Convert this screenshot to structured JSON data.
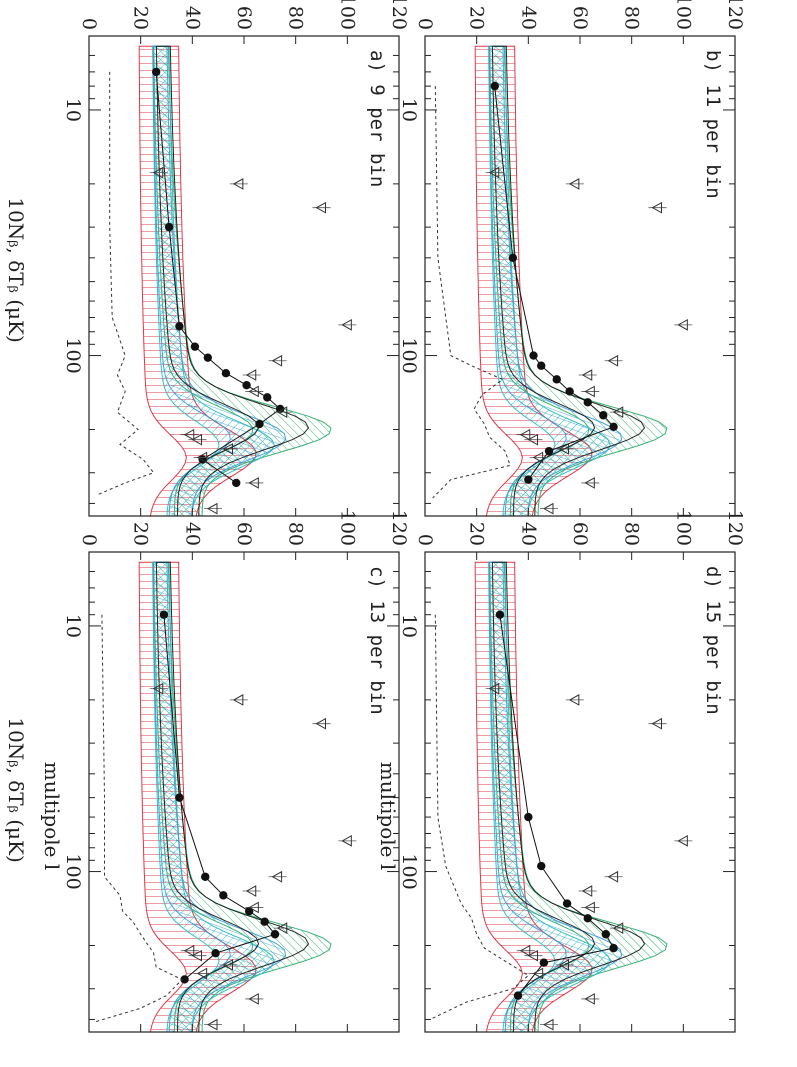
{
  "figure": {
    "xlabel": "multipole l",
    "ylabel": "10Nᵦ, δTᵦ (μK)",
    "x_ticks": [
      {
        "v": 10,
        "label": "10"
      },
      {
        "v": 100,
        "label": "100"
      }
    ],
    "y_ticks": [
      0,
      20,
      40,
      60,
      80,
      100,
      120
    ],
    "colors": {
      "black_band": "#111111",
      "blue_band": "#3399dd",
      "green_band": "#22aa66",
      "red_band": "#dd2233",
      "teal_band": "#22bbbb",
      "points": "#111111",
      "noise": "#333333"
    }
  },
  "chart_data": [
    {
      "type": "line",
      "panel_label": "a) 9 per bin",
      "xscale": "log",
      "xlim": [
        5,
        450
      ],
      "ylim": [
        0,
        120
      ],
      "points": {
        "x": [
          7,
          30,
          76,
          92,
          102,
          118,
          132,
          148,
          165,
          190,
          265,
          330
        ],
        "y": [
          26,
          31,
          35,
          41,
          46,
          53,
          61,
          69,
          74,
          66,
          44,
          57
        ]
      },
      "noise": {
        "x": [
          7,
          30,
          70,
          100,
          120,
          140,
          170,
          200,
          230,
          265,
          300,
          330,
          370
        ],
        "y": [
          8,
          8,
          9,
          14,
          11,
          14,
          11,
          19,
          12,
          21,
          25,
          14,
          3
        ]
      },
      "experiments": [
        {
          "x": 18,
          "y": 27
        },
        {
          "x": 20,
          "y": 58
        },
        {
          "x": 25,
          "y": 90
        },
        {
          "x": 75,
          "y": 100
        },
        {
          "x": 105,
          "y": 73
        },
        {
          "x": 120,
          "y": 63
        },
        {
          "x": 140,
          "y": 64
        },
        {
          "x": 170,
          "y": 75
        },
        {
          "x": 210,
          "y": 39
        },
        {
          "x": 220,
          "y": 42
        },
        {
          "x": 240,
          "y": 54
        },
        {
          "x": 260,
          "y": 44
        },
        {
          "x": 330,
          "y": 64
        },
        {
          "x": 420,
          "y": 48
        }
      ]
    },
    {
      "type": "line",
      "panel_label": "b) 11 per bin",
      "xscale": "log",
      "xlim": [
        5,
        450
      ],
      "ylim": [
        0,
        120
      ],
      "points": {
        "x": [
          8,
          40,
          100,
          110,
          125,
          140,
          155,
          175,
          195,
          245,
          320
        ],
        "y": [
          27,
          34,
          42,
          45,
          51,
          56,
          63,
          69,
          73,
          48,
          40
        ]
      },
      "noise": {
        "x": [
          8,
          40,
          100,
          110,
          125,
          145,
          165,
          190,
          215,
          245,
          280,
          320,
          380
        ],
        "y": [
          4,
          5,
          10,
          18,
          30,
          22,
          19,
          23,
          25,
          31,
          33,
          10,
          3
        ]
      },
      "experiments": [
        {
          "x": 18,
          "y": 27
        },
        {
          "x": 20,
          "y": 58
        },
        {
          "x": 25,
          "y": 90
        },
        {
          "x": 75,
          "y": 100
        },
        {
          "x": 105,
          "y": 73
        },
        {
          "x": 120,
          "y": 63
        },
        {
          "x": 140,
          "y": 64
        },
        {
          "x": 170,
          "y": 75
        },
        {
          "x": 210,
          "y": 39
        },
        {
          "x": 220,
          "y": 42
        },
        {
          "x": 240,
          "y": 54
        },
        {
          "x": 260,
          "y": 44
        },
        {
          "x": 330,
          "y": 64
        },
        {
          "x": 420,
          "y": 48
        }
      ]
    },
    {
      "type": "line",
      "panel_label": "c) 13 per bin",
      "xscale": "log",
      "xlim": [
        5,
        450
      ],
      "ylim": [
        0,
        120
      ],
      "points": {
        "x": [
          9,
          50,
          105,
          125,
          145,
          160,
          180,
          215,
          275
        ],
        "y": [
          29,
          35,
          45,
          52,
          62,
          68,
          72,
          49,
          37
        ]
      },
      "noise": {
        "x": [
          9,
          50,
          105,
          125,
          145,
          160,
          180,
          215,
          245,
          275,
          320,
          360,
          410
        ],
        "y": [
          5,
          6,
          6,
          12,
          13,
          17,
          20,
          25,
          26,
          36,
          30,
          20,
          2
        ]
      },
      "experiments": [
        {
          "x": 18,
          "y": 27
        },
        {
          "x": 20,
          "y": 58
        },
        {
          "x": 25,
          "y": 90
        },
        {
          "x": 75,
          "y": 100
        },
        {
          "x": 105,
          "y": 73
        },
        {
          "x": 120,
          "y": 63
        },
        {
          "x": 140,
          "y": 64
        },
        {
          "x": 170,
          "y": 75
        },
        {
          "x": 210,
          "y": 39
        },
        {
          "x": 220,
          "y": 42
        },
        {
          "x": 240,
          "y": 54
        },
        {
          "x": 260,
          "y": 44
        },
        {
          "x": 330,
          "y": 64
        },
        {
          "x": 420,
          "y": 48
        }
      ]
    },
    {
      "type": "line",
      "panel_label": "d) 15 per bin",
      "xscale": "log",
      "xlim": [
        5,
        450
      ],
      "ylim": [
        0,
        120
      ],
      "points": {
        "x": [
          9,
          60,
          95,
          135,
          155,
          180,
          205,
          235,
          320
        ],
        "y": [
          29,
          40,
          45,
          55,
          63,
          70,
          73,
          46,
          36
        ]
      },
      "noise": {
        "x": [
          9,
          60,
          95,
          135,
          155,
          180,
          205,
          235,
          265,
          300,
          340,
          400
        ],
        "y": [
          4,
          5,
          8,
          14,
          18,
          20,
          23,
          32,
          40,
          34,
          16,
          2
        ]
      },
      "experiments": [
        {
          "x": 18,
          "y": 27
        },
        {
          "x": 20,
          "y": 58
        },
        {
          "x": 25,
          "y": 90
        },
        {
          "x": 75,
          "y": 100
        },
        {
          "x": 105,
          "y": 73
        },
        {
          "x": 120,
          "y": 63
        },
        {
          "x": 140,
          "y": 64
        },
        {
          "x": 170,
          "y": 75
        },
        {
          "x": 210,
          "y": 39
        },
        {
          "x": 220,
          "y": 42
        },
        {
          "x": 240,
          "y": 54
        },
        {
          "x": 260,
          "y": 44
        },
        {
          "x": 330,
          "y": 64
        },
        {
          "x": 420,
          "y": 48
        }
      ]
    }
  ]
}
